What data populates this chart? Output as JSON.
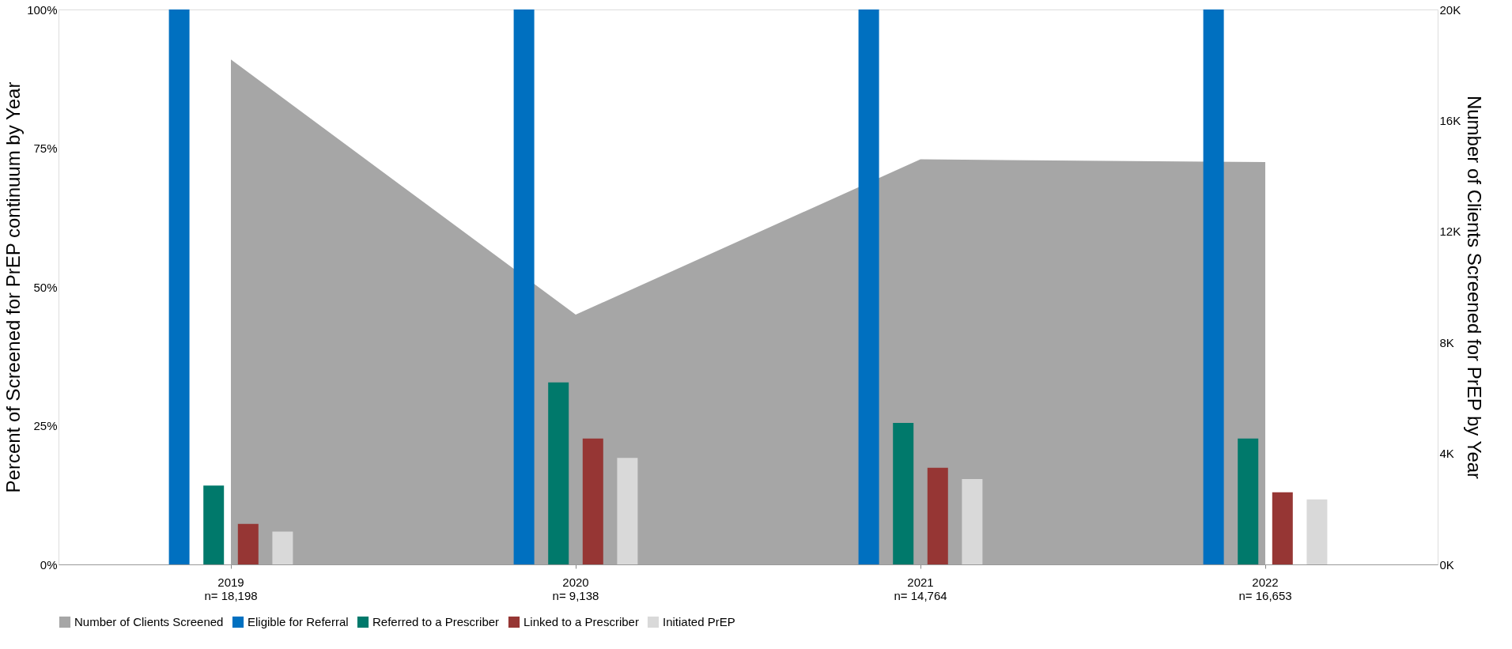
{
  "chart_data": {
    "type": "bar",
    "categories": [
      "2019\nn= 18,198",
      "2020\nn= 9,138",
      "2021\nn= 14,764",
      "2022\nn= 16,653"
    ],
    "ylabel": "Percent of Screened for PrEP continuum by Year",
    "y2label": "Number of Clients Screened for PrEP by Year",
    "ylim": [
      0,
      100
    ],
    "yticks": [
      {
        "value": 0,
        "label": "0%"
      },
      {
        "value": 25,
        "label": "25%"
      },
      {
        "value": 50,
        "label": "50%"
      },
      {
        "value": 75,
        "label": "75%"
      },
      {
        "value": 100,
        "label": "100%"
      }
    ],
    "y2lim": [
      0,
      20000
    ],
    "y2ticks": [
      {
        "value": 0,
        "label": "0K"
      },
      {
        "value": 4000,
        "label": "4K"
      },
      {
        "value": 8000,
        "label": "8K"
      },
      {
        "value": 12000,
        "label": "12K"
      },
      {
        "value": 16000,
        "label": "16K"
      },
      {
        "value": 20000,
        "label": "20K"
      }
    ],
    "series": [
      {
        "name": "Number of Clients Screened",
        "type": "area",
        "axis": "y2",
        "color": "#a6a6a6",
        "values": [
          18200,
          9000,
          14600,
          14500
        ]
      },
      {
        "name": "Eligible for Referral",
        "color": "#0070c0",
        "values": [
          100,
          100,
          100,
          100
        ]
      },
      {
        "name": "Referred to a Prescriber",
        "color": "#00796b",
        "values": [
          14.2,
          32.8,
          25.5,
          22.7
        ]
      },
      {
        "name": "Linked to a Prescriber",
        "color": "#963634",
        "values": [
          7.3,
          22.7,
          17.4,
          13.0
        ]
      },
      {
        "name": "Initiated PrEP",
        "color": "#d9d9d9",
        "values": [
          5.9,
          19.2,
          15.4,
          11.7
        ]
      }
    ],
    "legend": "bottom",
    "grid": false
  }
}
